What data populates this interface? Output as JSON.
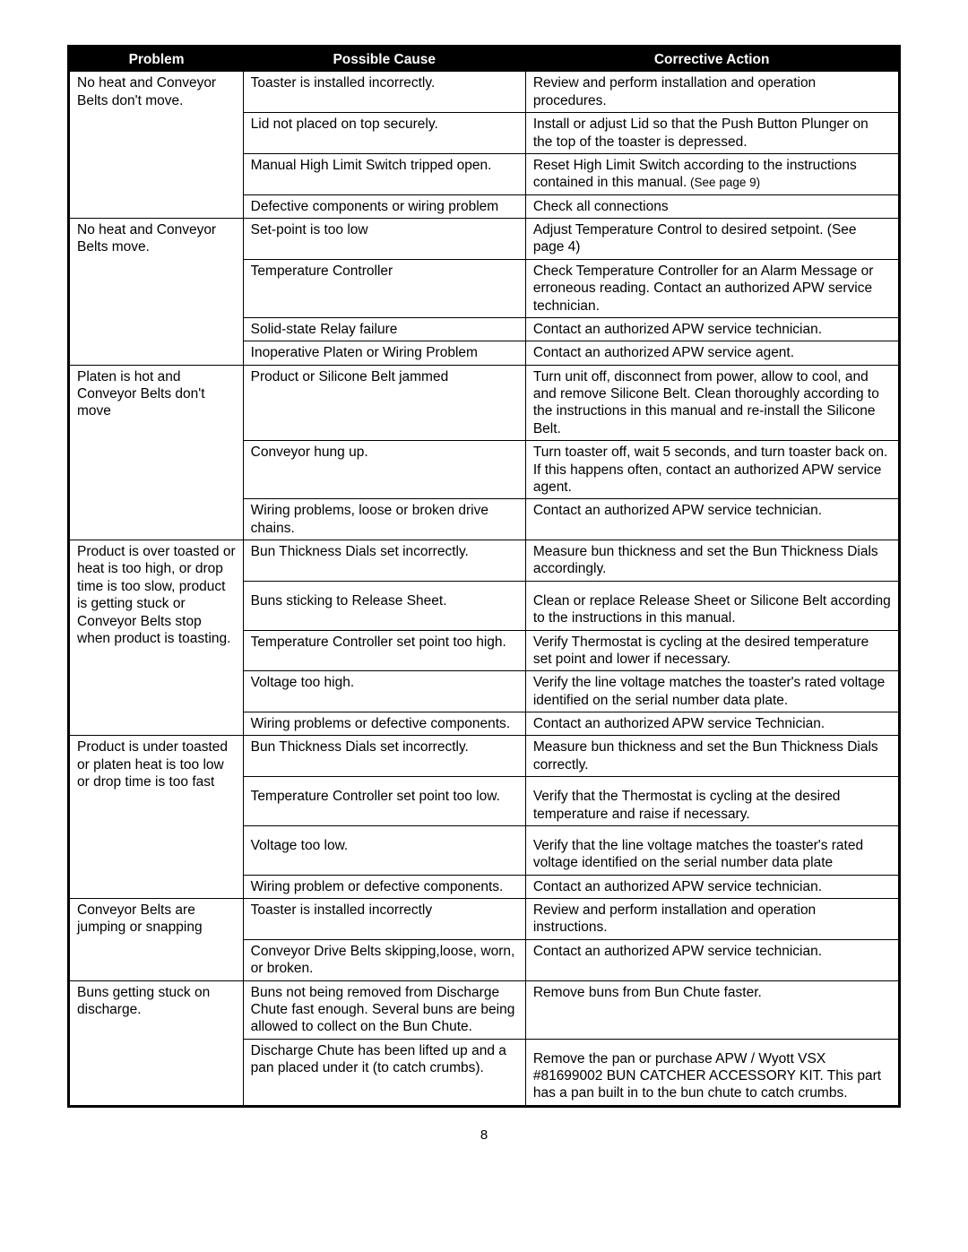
{
  "page_number": "8",
  "headers": {
    "problem": "Problem",
    "cause": "Possible Cause",
    "action": "Corrective Action"
  },
  "groups": [
    {
      "problem": "No heat and Conveyor Belts don't move.",
      "rows": [
        {
          "cause": "Toaster is installed incorrectly.",
          "action": "Review and perform installation and operation procedures."
        },
        {
          "cause": "Lid not placed on top securely.",
          "action": "Install or adjust Lid so that the Push Button Plunger on the top of the toaster is depressed."
        },
        {
          "cause": "Manual High Limit Switch tripped open.",
          "action": "Reset High Limit Switch according to the instructions contained in this manual.",
          "action_small": " (See page 9)"
        },
        {
          "cause": "Defective components or wiring problem",
          "action": "Check all connections"
        }
      ]
    },
    {
      "problem": "No heat and Conveyor Belts move.",
      "rows": [
        {
          "cause": "Set-point is too low",
          "action": "Adjust Temperature Control to desired setpoint. (See page 4)"
        },
        {
          "cause": "Temperature Controller",
          "action": "Check Temperature Controller for an Alarm Message or erroneous reading.  Contact an authorized APW service technician."
        },
        {
          "cause": "Solid-state Relay failure",
          "action": "Contact an authorized APW service technician."
        },
        {
          "cause": "Inoperative Platen or Wiring Problem",
          "action": "Contact an authorized APW service agent."
        }
      ]
    },
    {
      "problem": "Platen is hot and Conveyor Belts don't move",
      "rows": [
        {
          "cause": "Product or Silicone Belt jammed",
          "action": "Turn unit off, disconnect from power, allow to cool, and and remove Silicone Belt.  Clean thoroughly according to the instructions in this manual and re-install the Silicone Belt."
        },
        {
          "cause": "Conveyor hung up.",
          "action": "Turn toaster off, wait 5 seconds, and turn toaster back on. If this happens often, contact an authorized APW service agent."
        },
        {
          "cause": "Wiring problems, loose or broken drive chains.",
          "action": "Contact an authorized APW service technician."
        }
      ]
    },
    {
      "problem": "Product is over toasted or heat is too high, or drop time is too slow, product is getting stuck or Conveyor Belts stop when product is toasting.",
      "rows": [
        {
          "cause": "Bun Thickness Dials set incorrectly.",
          "action": "Measure bun thickness and set the Bun Thickness Dials accordingly."
        },
        {
          "cause": "Buns sticking to Release Sheet.",
          "action": "Clean or replace Release Sheet or Silicone Belt according to the instructions in this manual.",
          "cause_pad": true,
          "action_pad": true
        },
        {
          "cause": "Temperature  Controller set point too high.",
          "action": "Verify Thermostat is cycling at the desired temperature set point and lower if necessary."
        },
        {
          "cause": "Voltage too high.",
          "action": "Verify the line voltage matches the toaster's rated voltage identified on the serial number data plate."
        },
        {
          "cause": "Wiring problems or defective components.",
          "action": "Contact an authorized APW service Technician."
        }
      ]
    },
    {
      "problem": "Product is under toasted or platen heat is too low or drop time is too fast",
      "rows": [
        {
          "cause": "Bun Thickness Dials set incorrectly.",
          "action": "Measure bun thickness and set the Bun Thickness Dials correctly."
        },
        {
          "cause": "Temperature Controller set point too low.",
          "action": "Verify that the Thermostat is cycling at the desired temperature and raise if necessary.",
          "cause_pad": true,
          "action_pad": true
        },
        {
          "cause": "Voltage too low.",
          "action": "Verify that the line voltage matches the toaster's rated voltage identified on the serial number data plate",
          "cause_pad": true,
          "action_pad": true
        },
        {
          "cause": "Wiring problem or defective components.",
          "action": "Contact an authorized APW service technician."
        }
      ]
    },
    {
      "problem": "Conveyor Belts are jumping or snapping",
      "rows": [
        {
          "cause": "Toaster is installed incorrectly",
          "action": "Review and perform installation and operation instructions."
        },
        {
          "cause": "Conveyor Drive Belts skipping,loose, worn, or broken.",
          "action": "Contact an authorized APW service technician."
        }
      ]
    },
    {
      "problem": "Buns getting stuck on discharge.",
      "rows": [
        {
          "cause": "Buns not being removed from Discharge Chute fast enough. Several buns are being allowed to collect on the Bun Chute.",
          "action": "Remove buns from Bun Chute faster."
        },
        {
          "cause": "Discharge Chute has been lifted up and a pan placed under it (to catch crumbs).",
          "action": "Remove the pan or purchase APW / Wyott VSX #81699002 BUN CATCHER ACCESSORY KIT.  This part has a pan built in to the bun chute to catch crumbs.",
          "action_pad": true
        }
      ]
    }
  ]
}
